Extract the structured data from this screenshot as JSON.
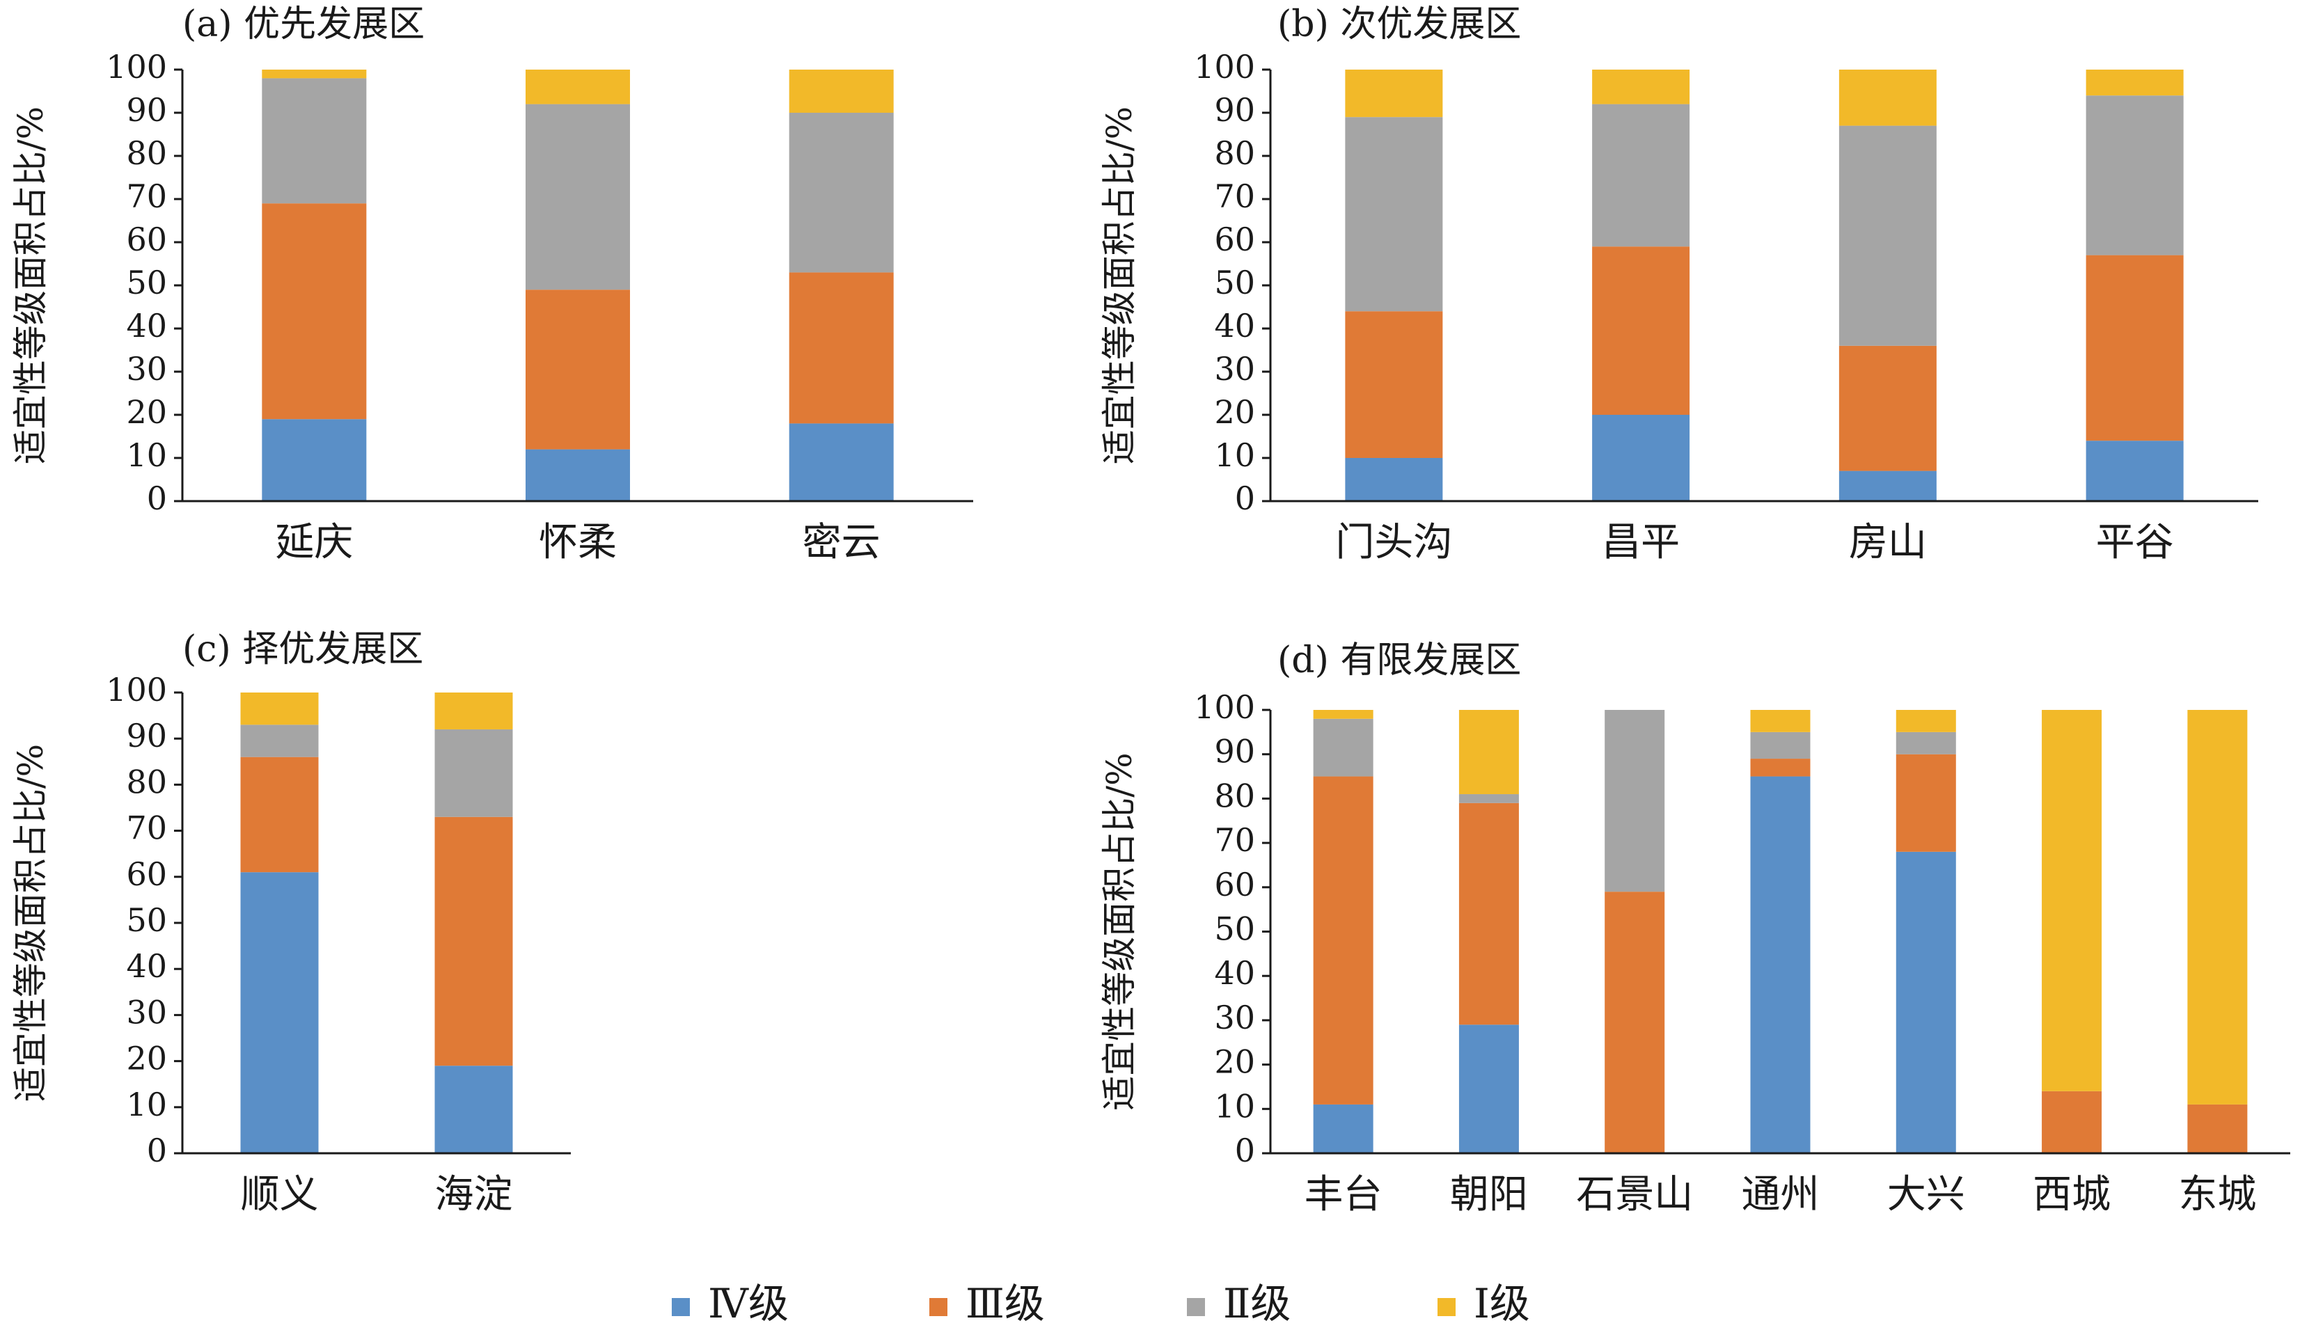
{
  "legend": {
    "items": [
      {
        "label": "Ⅳ级",
        "color": "#5a8fc7"
      },
      {
        "label": "Ⅲ级",
        "color": "#e07a36"
      },
      {
        "label": "Ⅱ级",
        "color": "#a5a5a5"
      },
      {
        "label": "Ⅰ级",
        "color": "#f2b929"
      }
    ]
  },
  "chart_data": [
    {
      "type": "bar",
      "stacked": true,
      "title": "(a) 优先发展区",
      "ylabel": "适宜性等级面积占比/%",
      "xlabel": "",
      "ylim": [
        0,
        100
      ],
      "yticks": [
        0,
        10,
        20,
        30,
        40,
        50,
        60,
        70,
        80,
        90,
        100
      ],
      "grid": false,
      "categories": [
        "延庆",
        "怀柔",
        "密云"
      ],
      "series": [
        {
          "name": "Ⅳ级",
          "values": [
            19,
            12,
            18
          ]
        },
        {
          "name": "Ⅲ级",
          "values": [
            50,
            37,
            35
          ]
        },
        {
          "name": "Ⅱ级",
          "values": [
            29,
            43,
            37
          ]
        },
        {
          "name": "Ⅰ级",
          "values": [
            2,
            8,
            10
          ]
        }
      ]
    },
    {
      "type": "bar",
      "stacked": true,
      "title": "(b) 次优发展区",
      "ylabel": "适宜性等级面积占比/%",
      "xlabel": "",
      "ylim": [
        0,
        100
      ],
      "yticks": [
        0,
        10,
        20,
        30,
        40,
        50,
        60,
        70,
        80,
        90,
        100
      ],
      "grid": false,
      "categories": [
        "门头沟",
        "昌平",
        "房山",
        "平谷"
      ],
      "series": [
        {
          "name": "Ⅳ级",
          "values": [
            10,
            20,
            7,
            14
          ]
        },
        {
          "name": "Ⅲ级",
          "values": [
            34,
            39,
            29,
            43
          ]
        },
        {
          "name": "Ⅱ级",
          "values": [
            45,
            33,
            51,
            37
          ]
        },
        {
          "name": "Ⅰ级",
          "values": [
            11,
            8,
            13,
            6
          ]
        }
      ]
    },
    {
      "type": "bar",
      "stacked": true,
      "title": "(c) 择优发展区",
      "ylabel": "适宜性等级面积占比/%",
      "xlabel": "",
      "ylim": [
        0,
        100
      ],
      "yticks": [
        0,
        10,
        20,
        30,
        40,
        50,
        60,
        70,
        80,
        90,
        100
      ],
      "grid": false,
      "categories": [
        "顺义",
        "海淀"
      ],
      "series": [
        {
          "name": "Ⅳ级",
          "values": [
            61,
            19
          ]
        },
        {
          "name": "Ⅲ级",
          "values": [
            25,
            54
          ]
        },
        {
          "name": "Ⅱ级",
          "values": [
            7,
            19
          ]
        },
        {
          "name": "Ⅰ级",
          "values": [
            7,
            8
          ]
        }
      ]
    },
    {
      "type": "bar",
      "stacked": true,
      "title": "(d) 有限发展区",
      "ylabel": "适宜性等级面积占比/%",
      "xlabel": "",
      "ylim": [
        0,
        100
      ],
      "yticks": [
        0,
        10,
        20,
        30,
        40,
        50,
        60,
        70,
        80,
        90,
        100
      ],
      "grid": false,
      "categories": [
        "丰台",
        "朝阳",
        "石景山",
        "通州",
        "大兴",
        "西城",
        "东城"
      ],
      "series": [
        {
          "name": "Ⅳ级",
          "values": [
            11,
            29,
            0,
            85,
            68,
            0,
            0
          ]
        },
        {
          "name": "Ⅲ级",
          "values": [
            74,
            50,
            59,
            4,
            22,
            14,
            11
          ]
        },
        {
          "name": "Ⅱ级",
          "values": [
            13,
            2,
            41,
            6,
            5,
            0,
            0
          ]
        },
        {
          "name": "Ⅰ级",
          "values": [
            2,
            19,
            0,
            5,
            5,
            86,
            89
          ]
        }
      ]
    }
  ]
}
